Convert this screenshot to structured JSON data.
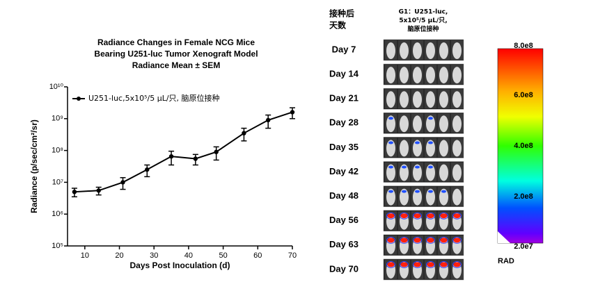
{
  "chart_data": {
    "type": "line",
    "title": [
      "Radiance Changes in Female NCG Mice",
      "Bearing U251-luc Tumor Xenograft Model",
      "Radiance Mean ± SEM"
    ],
    "x_label": "Days Post Inoculation (d)",
    "y_label": "Radiance (p/sec/cm²/sr)",
    "x": [
      7,
      14,
      21,
      28,
      35,
      42,
      48,
      56,
      63,
      70
    ],
    "series": [
      {
        "name": "U251-luc,5x10⁵/5 μL/只, 脑原位接种",
        "color": "#000000",
        "values": [
          5000000,
          5500000,
          10000000,
          25000000,
          65000000,
          55000000,
          90000000,
          350000000,
          900000000,
          1600000000
        ],
        "errors": [
          1500000,
          1500000,
          4000000,
          10000000,
          30000000,
          20000000,
          40000000,
          150000000,
          400000000,
          600000000
        ]
      }
    ],
    "xlim": [
      5,
      70
    ],
    "xticks": [
      10,
      20,
      30,
      40,
      50,
      60,
      70
    ],
    "ylim": [
      100000,
      10000000000
    ],
    "log_y": true,
    "yticks": [
      {
        "value": 100000,
        "label": "10⁵"
      },
      {
        "value": 1000000,
        "label": "10⁶"
      },
      {
        "value": 10000000,
        "label": "10⁷"
      },
      {
        "value": 100000000,
        "label": "10⁸"
      },
      {
        "value": 1000000000,
        "label": "10⁹"
      },
      {
        "value": 10000000000,
        "label": "10¹⁰"
      }
    ],
    "legend": "top-left"
  },
  "image_panel": {
    "row_header": [
      "接种后",
      "天数"
    ],
    "group_header": [
      "G1：U251-luc,",
      "5x10⁵/5  μL/只,",
      "脑原位接种"
    ],
    "days": [
      "Day 7",
      "Day 14",
      "Day 21",
      "Day 28",
      "Day 35",
      "Day 42",
      "Day 48",
      "Day 56",
      "Day 63",
      "Day 70"
    ],
    "colorbar": {
      "labels": [
        "8.0e8",
        "6.0e8",
        "4.0e8",
        "2.0e8",
        "2.0e7"
      ],
      "unit": "RAD"
    }
  }
}
